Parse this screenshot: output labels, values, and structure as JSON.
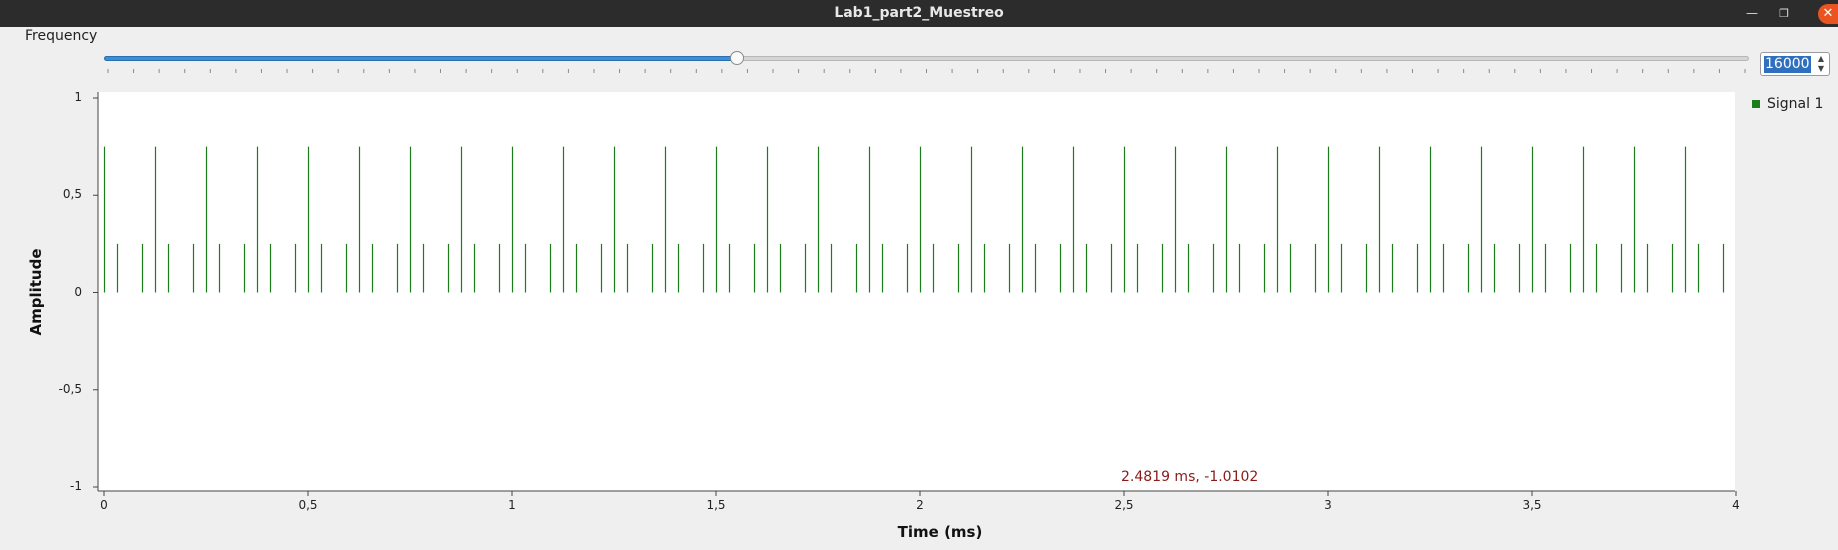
{
  "window": {
    "title": "Lab1_part2_Muestreo"
  },
  "controls": {
    "frequency_label": "Frequency",
    "slider_fraction": 0.385,
    "slider_tick_count": 65,
    "spin_value": "16000"
  },
  "legend": {
    "signal_name": "Signal 1"
  },
  "cursor_readout": "2.4819 ms, -1.0102",
  "colors": {
    "signal": "#1a7d1a",
    "accent": "#3b8ed8",
    "close_button": "#e95420",
    "readout": "#8b1a1a"
  },
  "chart_data": {
    "type": "stem",
    "xlabel": "Time (ms)",
    "ylabel": "Amplitude",
    "xlim": [
      0,
      4
    ],
    "ylim": [
      -1,
      1
    ],
    "x_ticks": [
      {
        "value": 0,
        "label": "0"
      },
      {
        "value": 0.5,
        "label": "0,5"
      },
      {
        "value": 1,
        "label": "1"
      },
      {
        "value": 1.5,
        "label": "1,5"
      },
      {
        "value": 2,
        "label": "2"
      },
      {
        "value": 2.5,
        "label": "2,5"
      },
      {
        "value": 3,
        "label": "3"
      },
      {
        "value": 3.5,
        "label": "3,5"
      },
      {
        "value": 4,
        "label": "4"
      }
    ],
    "y_ticks": [
      {
        "value": 1,
        "label": "1"
      },
      {
        "value": 0.5,
        "label": "0,5"
      },
      {
        "value": 0,
        "label": "0"
      },
      {
        "value": -0.5,
        "label": "-0,5"
      },
      {
        "value": -1,
        "label": "-1"
      }
    ],
    "series": [
      {
        "name": "Signal 1",
        "sample_period_ms": 0.03125,
        "sample_count": 128,
        "pattern": [
          0.75,
          0.25,
          0.0,
          0.25
        ]
      }
    ]
  }
}
